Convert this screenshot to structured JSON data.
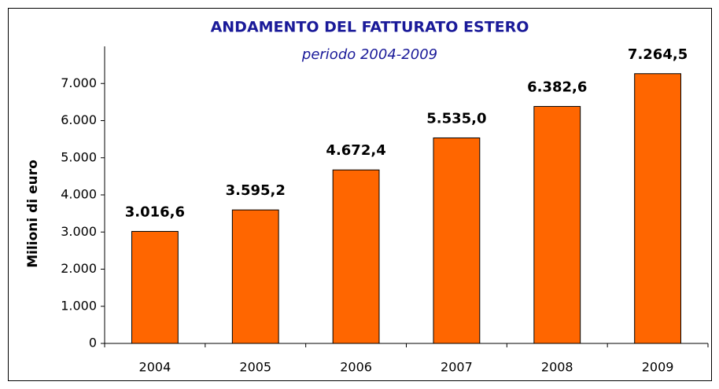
{
  "chart_data": {
    "type": "bar",
    "title": "ANDAMENTO DEL FATTURATO ESTERO",
    "subtitle": "periodo 2004-2009",
    "y_label": "Milioni di euro",
    "categories": [
      "2004",
      "2005",
      "2006",
      "2007",
      "2008",
      "2009"
    ],
    "values": [
      3016.6,
      3595.2,
      4672.4,
      5535.0,
      6382.6,
      7264.5
    ],
    "value_labels": [
      "3.016,6",
      "3.595,2",
      "4.672,4",
      "5.535,0",
      "6.382,6",
      "7.264,5"
    ],
    "color": "#ff6600",
    "ylim": [
      0,
      8000
    ],
    "yticks": [
      0,
      {
        "value": 1000,
        "label": "1.000"
      },
      {
        "value": 2000,
        "label": "2.000"
      },
      {
        "value": 3000,
        "label": "3.000"
      },
      {
        "value": 4000,
        "label": "4.000"
      },
      {
        "value": 5000,
        "label": "5.000"
      },
      {
        "value": 6000,
        "label": "6.000"
      },
      {
        "value": 7000,
        "label": "7.000"
      }
    ],
    "grid": false
  }
}
